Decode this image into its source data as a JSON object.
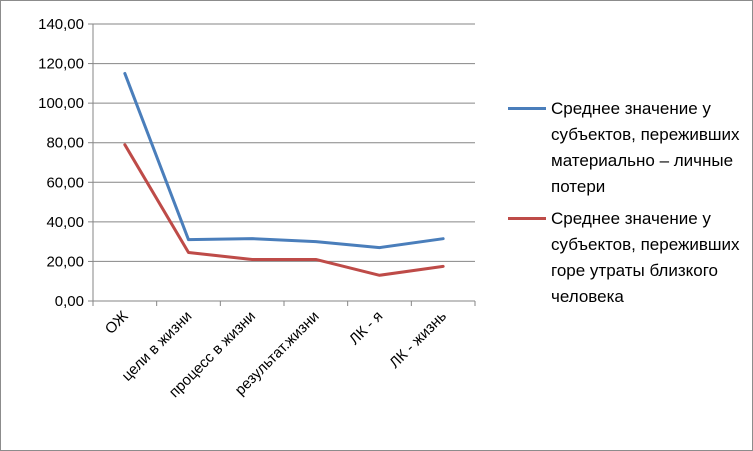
{
  "chart_data": {
    "type": "line",
    "categories": [
      "ОЖ",
      "цели в жизни",
      "процесс в жизни",
      "результат.жизни",
      "ЛК - я",
      "ЛК - жизнь"
    ],
    "series": [
      {
        "name": "Среднее значение у субъектов, переживших материально – личные потери",
        "color": "#4a7ebb",
        "values": [
          115.0,
          31.0,
          31.5,
          30.0,
          27.0,
          31.5
        ]
      },
      {
        "name": "Среднее значение у субъектов, переживших горе утраты близкого человека",
        "color": "#be4b48",
        "values": [
          79.0,
          24.5,
          21.0,
          21.0,
          13.0,
          17.5
        ]
      }
    ],
    "y_ticks": [
      "0,00",
      "20,00",
      "40,00",
      "60,00",
      "80,00",
      "100,00",
      "120,00",
      "140,00"
    ],
    "ylim": [
      0,
      140
    ],
    "grid": true,
    "legend": "right",
    "title": "",
    "xlabel": "",
    "ylabel": ""
  }
}
